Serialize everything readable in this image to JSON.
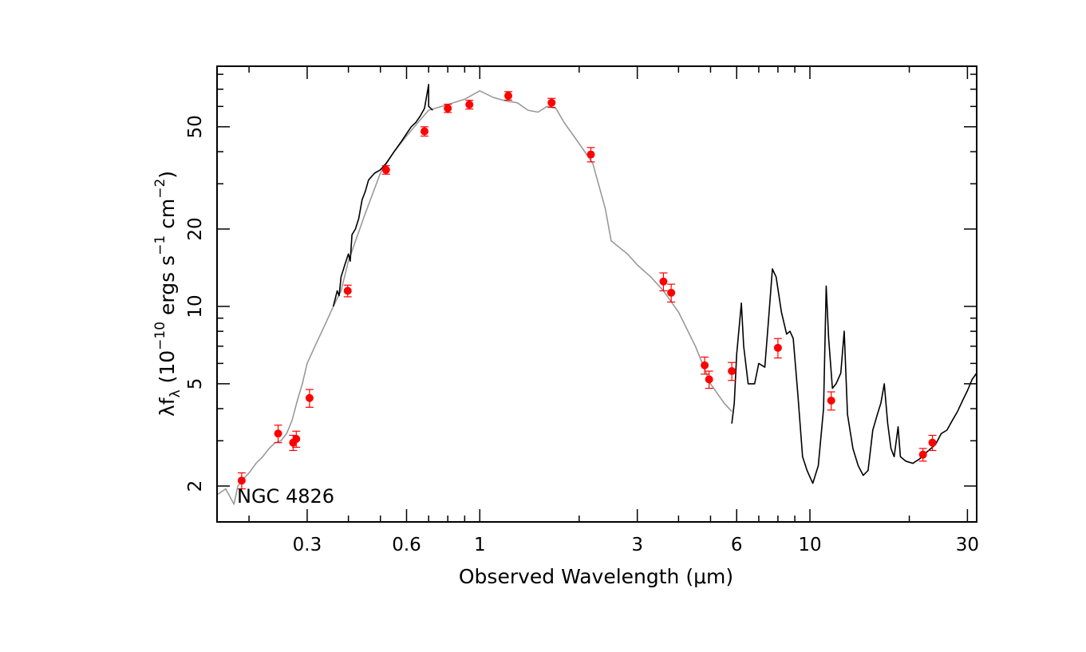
{
  "chart_data": {
    "type": "scatter",
    "title": "",
    "annotation": "NGC 4826",
    "xlabel": "Observed Wavelength (μm)",
    "ylabel": {
      "prefix": "λf",
      "sub": "λ",
      "mid1": " (10",
      "exp1": "−10",
      "mid2": " ergs s",
      "exp2": "−1",
      "mid3": " cm",
      "exp3": "−2",
      "suffix": ")"
    },
    "x_scale": "log",
    "y_scale": "log",
    "xlim": [
      0.16,
      32
    ],
    "ylim": [
      1.45,
      86
    ],
    "x_ticks": [
      {
        "value": 0.3,
        "label": "0.3"
      },
      {
        "value": 0.6,
        "label": "0.6"
      },
      {
        "value": 1,
        "label": "1"
      },
      {
        "value": 3,
        "label": "3"
      },
      {
        "value": 6,
        "label": "6"
      },
      {
        "value": 10,
        "label": "10"
      },
      {
        "value": 30,
        "label": "30"
      }
    ],
    "y_ticks": [
      {
        "value": 2,
        "label": "2"
      },
      {
        "value": 5,
        "label": "5"
      },
      {
        "value": 10,
        "label": "10"
      },
      {
        "value": 20,
        "label": "20"
      },
      {
        "value": 50,
        "label": "50"
      }
    ],
    "template_color": "#999999",
    "observed_color": "#000000",
    "point_color": "#ff0000",
    "template_spectrum": [
      [
        0.16,
        1.85
      ],
      [
        0.17,
        1.95
      ],
      [
        0.18,
        1.7
      ],
      [
        0.185,
        2.0
      ],
      [
        0.19,
        2.1
      ],
      [
        0.2,
        2.25
      ],
      [
        0.21,
        2.45
      ],
      [
        0.22,
        2.6
      ],
      [
        0.23,
        2.8
      ],
      [
        0.24,
        2.95
      ],
      [
        0.25,
        3.0
      ],
      [
        0.26,
        3.2
      ],
      [
        0.27,
        3.6
      ],
      [
        0.28,
        4.3
      ],
      [
        0.29,
        5.0
      ],
      [
        0.3,
        6.0
      ],
      [
        0.32,
        7.2
      ],
      [
        0.34,
        8.5
      ],
      [
        0.36,
        10.0
      ],
      [
        0.38,
        11.5
      ],
      [
        0.4,
        15
      ],
      [
        0.45,
        23
      ],
      [
        0.5,
        33
      ],
      [
        0.55,
        40
      ],
      [
        0.6,
        46
      ],
      [
        0.65,
        52
      ],
      [
        0.7,
        58
      ],
      [
        0.8,
        61
      ],
      [
        0.9,
        64
      ],
      [
        1.0,
        69
      ],
      [
        1.1,
        65
      ],
      [
        1.2,
        63
      ],
      [
        1.3,
        62
      ],
      [
        1.4,
        58
      ],
      [
        1.5,
        57
      ],
      [
        1.6,
        60
      ],
      [
        1.7,
        59
      ],
      [
        1.8,
        52
      ],
      [
        2.0,
        43
      ],
      [
        2.2,
        36
      ],
      [
        2.4,
        24
      ],
      [
        2.5,
        18
      ],
      [
        2.8,
        16
      ],
      [
        3.0,
        14.5
      ],
      [
        3.3,
        13
      ],
      [
        3.6,
        11.5
      ],
      [
        4.0,
        9.5
      ],
      [
        4.5,
        7.0
      ],
      [
        5.0,
        5.0
      ],
      [
        5.5,
        4.2
      ],
      [
        5.8,
        3.9
      ]
    ],
    "observed_spectrum": [
      [
        0.36,
        10.0
      ],
      [
        0.37,
        11.5
      ],
      [
        0.375,
        11
      ],
      [
        0.38,
        13
      ],
      [
        0.39,
        14.5
      ],
      [
        0.4,
        16
      ],
      [
        0.405,
        15
      ],
      [
        0.41,
        19
      ],
      [
        0.42,
        20
      ],
      [
        0.43,
        22
      ],
      [
        0.44,
        26
      ],
      [
        0.45,
        28
      ],
      [
        0.46,
        31
      ],
      [
        0.48,
        33
      ],
      [
        0.5,
        34
      ],
      [
        0.52,
        36
      ],
      [
        0.55,
        40
      ],
      [
        0.58,
        44
      ],
      [
        0.6,
        47
      ],
      [
        0.62,
        50
      ],
      [
        0.64,
        52
      ],
      [
        0.66,
        55
      ],
      [
        0.68,
        59
      ],
      [
        0.7,
        73
      ],
      [
        0.7,
        60
      ],
      [
        0.72,
        58
      ],
      [
        5.8,
        3.5
      ],
      [
        5.9,
        4.2
      ],
      [
        6.0,
        6.5
      ],
      [
        6.2,
        10.3
      ],
      [
        6.3,
        7.0
      ],
      [
        6.5,
        5.0
      ],
      [
        6.8,
        5.0
      ],
      [
        7.0,
        6.0
      ],
      [
        7.3,
        5.8
      ],
      [
        7.5,
        9.0
      ],
      [
        7.7,
        14.0
      ],
      [
        7.9,
        13.0
      ],
      [
        8.2,
        9.5
      ],
      [
        8.5,
        7.8
      ],
      [
        8.7,
        8.0
      ],
      [
        8.9,
        7.5
      ],
      [
        9.2,
        4.5
      ],
      [
        9.5,
        2.6
      ],
      [
        9.8,
        2.3
      ],
      [
        10.2,
        2.05
      ],
      [
        10.6,
        2.4
      ],
      [
        11.0,
        4.0
      ],
      [
        11.2,
        12.0
      ],
      [
        11.4,
        7.5
      ],
      [
        11.7,
        4.8
      ],
      [
        12.0,
        5.0
      ],
      [
        12.4,
        5.5
      ],
      [
        12.7,
        8.0
      ],
      [
        13.0,
        3.8
      ],
      [
        13.5,
        2.8
      ],
      [
        14.0,
        2.4
      ],
      [
        14.5,
        2.2
      ],
      [
        15.0,
        2.3
      ],
      [
        15.5,
        3.3
      ],
      [
        16.0,
        3.8
      ],
      [
        16.4,
        4.2
      ],
      [
        16.8,
        5.0
      ],
      [
        17.2,
        3.5
      ],
      [
        17.6,
        2.8
      ],
      [
        18.0,
        2.6
      ],
      [
        18.5,
        3.4
      ],
      [
        18.8,
        2.6
      ],
      [
        19.5,
        2.5
      ],
      [
        20.5,
        2.45
      ],
      [
        21.5,
        2.55
      ],
      [
        22.5,
        2.7
      ],
      [
        24,
        2.9
      ],
      [
        25,
        3.2
      ],
      [
        26,
        3.3
      ],
      [
        27,
        3.6
      ],
      [
        28,
        3.9
      ],
      [
        29,
        4.3
      ],
      [
        30,
        4.7
      ],
      [
        31,
        5.2
      ],
      [
        32,
        5.5
      ]
    ],
    "points": [
      {
        "x": 0.19,
        "y": 2.1,
        "err": 0.15
      },
      {
        "x": 0.245,
        "y": 3.2,
        "err": 0.25
      },
      {
        "x": 0.272,
        "y": 2.95,
        "err": 0.2
      },
      {
        "x": 0.278,
        "y": 3.05,
        "err": 0.22
      },
      {
        "x": 0.305,
        "y": 4.4,
        "err": 0.35
      },
      {
        "x": 0.398,
        "y": 11.5,
        "err": 0.6
      },
      {
        "x": 0.52,
        "y": 34,
        "err": 1.3
      },
      {
        "x": 0.68,
        "y": 48,
        "err": 2.0
      },
      {
        "x": 0.8,
        "y": 59,
        "err": 2.2
      },
      {
        "x": 0.93,
        "y": 61,
        "err": 2.4
      },
      {
        "x": 1.22,
        "y": 66,
        "err": 2.5
      },
      {
        "x": 1.65,
        "y": 62,
        "err": 2.5
      },
      {
        "x": 2.17,
        "y": 39,
        "err": 2.5
      },
      {
        "x": 3.6,
        "y": 12.5,
        "err": 1.0
      },
      {
        "x": 3.8,
        "y": 11.3,
        "err": 0.9
      },
      {
        "x": 4.8,
        "y": 5.9,
        "err": 0.45
      },
      {
        "x": 4.95,
        "y": 5.2,
        "err": 0.4
      },
      {
        "x": 5.8,
        "y": 5.6,
        "err": 0.45
      },
      {
        "x": 8.0,
        "y": 6.9,
        "err": 0.6
      },
      {
        "x": 11.6,
        "y": 4.3,
        "err": 0.35
      },
      {
        "x": 22.0,
        "y": 2.65,
        "err": 0.15
      },
      {
        "x": 23.5,
        "y": 2.95,
        "err": 0.2
      }
    ]
  }
}
